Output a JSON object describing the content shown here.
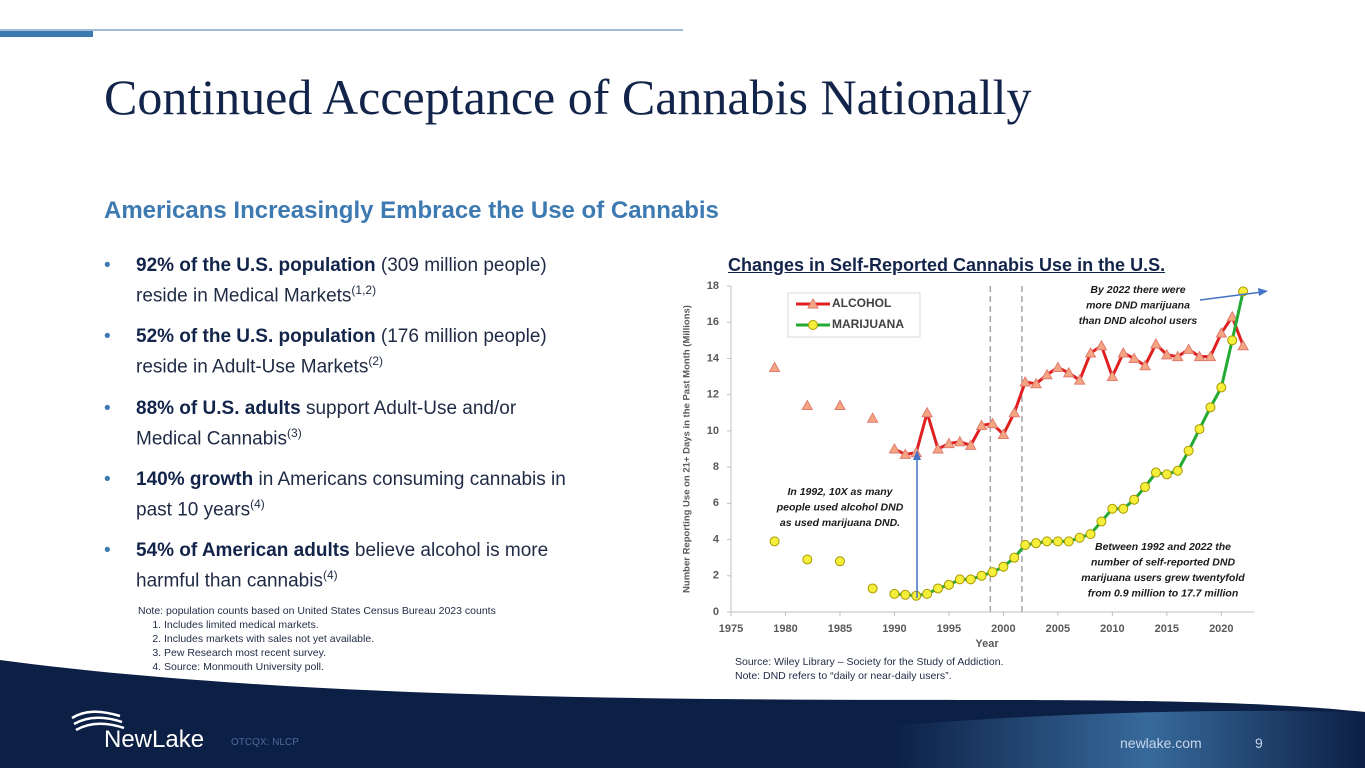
{
  "header": {
    "title": "Continued Acceptance of Cannabis Nationally",
    "subtitle": "Americans Increasingly Embrace the Use of Cannabis"
  },
  "bullets": [
    {
      "bold": "92% of the U.S. population",
      "text": " (309 million people) reside in Medical Markets",
      "sup": "(1,2)"
    },
    {
      "bold": "52% of the U.S. population",
      "text": " (176 million people) reside in Adult-Use Markets",
      "sup": "(2)"
    },
    {
      "bold": "88% of U.S. adults",
      "text": " support Adult-Use and/or Medical Cannabis",
      "sup": "(3)"
    },
    {
      "bold": "140% growth",
      "text": " in Americans consuming cannabis in past 10 years",
      "sup": "(4)"
    },
    {
      "bold": "54% of American adults",
      "text": " believe alcohol is more harmful than cannabis",
      "sup": "(4)"
    }
  ],
  "notes": {
    "intro": "Note: population counts based on United States Census Bureau 2023 counts",
    "items": [
      "Includes limited medical markets.",
      "Includes markets with sales not yet available.",
      "Pew Research most recent survey.",
      "Source: Monmouth University poll."
    ]
  },
  "chart_data": {
    "type": "line",
    "title": "Changes in Self-Reported Cannabis Use in the U.S.",
    "x_label": "Year",
    "y_label": "Number Reporting Use on 21+ Days in the Past Month (Millions)",
    "x": [
      1979,
      1980,
      1981,
      1982,
      1983,
      1984,
      1985,
      1986,
      1987,
      1988,
      1989,
      1990,
      1991,
      1992,
      1993,
      1994,
      1995,
      1996,
      1997,
      1998,
      1999,
      2000,
      2001,
      2002,
      2003,
      2004,
      2005,
      2006,
      2007,
      2008,
      2009,
      2010,
      2011,
      2012,
      2013,
      2014,
      2015,
      2016,
      2017,
      2018,
      2019,
      2020,
      2021,
      2022
    ],
    "series": [
      {
        "name": "ALCOHOL",
        "color": "#e02020",
        "marker_color": "#f4a582",
        "values": [
          13.5,
          null,
          null,
          11.4,
          null,
          null,
          11.4,
          null,
          null,
          10.7,
          null,
          9.0,
          8.7,
          8.8,
          11.0,
          9.0,
          9.3,
          9.4,
          9.2,
          10.3,
          10.4,
          9.8,
          11.0,
          12.7,
          12.6,
          13.1,
          13.5,
          13.2,
          12.8,
          14.3,
          14.7,
          13.0,
          14.3,
          14.0,
          13.6,
          14.8,
          14.2,
          14.1,
          14.5,
          14.1,
          14.1,
          15.4,
          16.3,
          14.7
        ]
      },
      {
        "name": "MARIJUANA",
        "color": "#22aa33",
        "marker_color": "#f5ee3a",
        "values": [
          3.9,
          null,
          null,
          2.9,
          null,
          null,
          2.8,
          null,
          null,
          1.3,
          null,
          1.0,
          0.95,
          0.9,
          1.0,
          1.3,
          1.5,
          1.8,
          1.8,
          2.0,
          2.2,
          2.5,
          3.0,
          3.7,
          3.8,
          3.9,
          3.9,
          3.9,
          4.1,
          4.3,
          5.0,
          5.7,
          5.7,
          6.2,
          6.9,
          7.7,
          7.6,
          7.8,
          8.9,
          10.1,
          11.3,
          12.4,
          15.0,
          17.7
        ]
      }
    ],
    "xlim": [
      1975,
      2023
    ],
    "xticks": [
      1975,
      1980,
      1985,
      1990,
      1995,
      2000,
      2005,
      2010,
      2015,
      2020
    ],
    "ylim": [
      0,
      18
    ],
    "yticks": [
      0,
      2,
      4,
      6,
      8,
      10,
      12,
      14,
      16,
      18
    ],
    "reference_lines": [
      1998.8,
      2001.7
    ],
    "annotations": [
      [
        "By 2022  there were",
        "more DND marijuana",
        "than DND alcohol users"
      ],
      [
        "In 1992, 10X as many",
        "people used alcohol DND",
        "as used marijuana DND."
      ],
      [
        "Between 1992 and 2022 the",
        "number of self-reported DND",
        "marijuana users grew twentyfold",
        "from 0.9 million to 17.7 million"
      ]
    ],
    "source": [
      "Source: Wiley Library – Society for the Study of Addiction.",
      "Note: DND refers to “daily or near-daily users”."
    ]
  },
  "footer": {
    "brand": "NewLake",
    "ticker": "OTCQX: NLCP",
    "website": "newlake.com",
    "page": "9"
  }
}
